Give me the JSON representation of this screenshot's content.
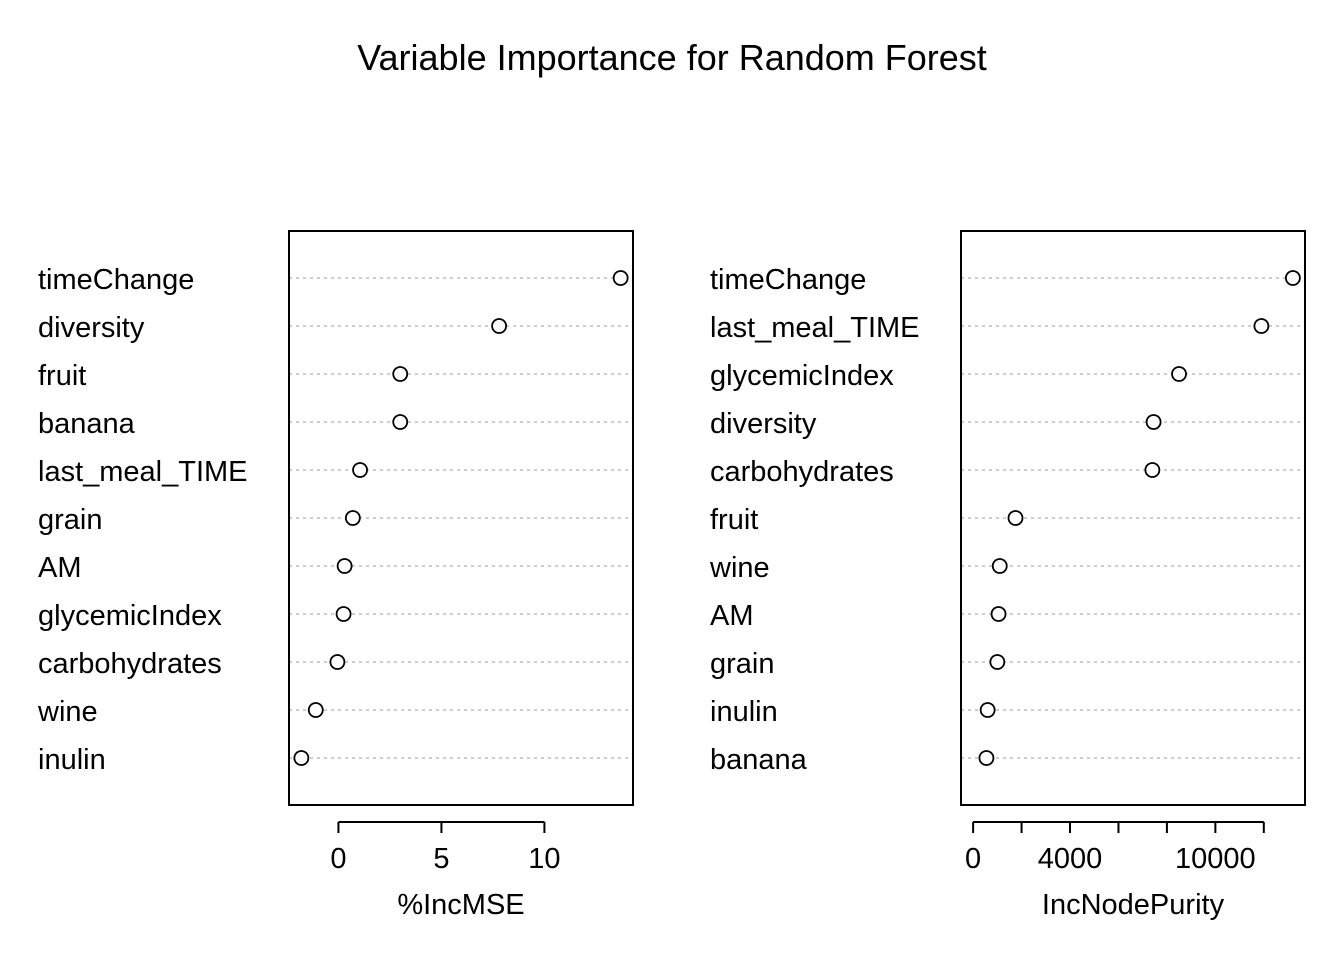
{
  "title": "Variable Importance for Random Forest",
  "chart_data": [
    {
      "type": "scatter",
      "subtype": "dotchart",
      "title": "",
      "xlabel": "%IncMSE",
      "ylabel": "",
      "xlim": [
        -2.4,
        14.3
      ],
      "xticks": [
        0,
        5,
        10
      ],
      "xtick_labels": [
        "0",
        "5",
        "10"
      ],
      "grid": "dotted horizontal lines per variable",
      "legend": "none",
      "categories": [
        "timeChange",
        "diversity",
        "fruit",
        "banana",
        "last_meal_TIME",
        "grain",
        "AM",
        "glycemicIndex",
        "carbohydrates",
        "wine",
        "inulin"
      ],
      "values": [
        13.7,
        7.8,
        3.0,
        3.0,
        1.05,
        0.7,
        0.3,
        0.25,
        -0.05,
        -1.1,
        -1.8
      ]
    },
    {
      "type": "scatter",
      "subtype": "dotchart",
      "title": "",
      "xlabel": "IncNodePurity",
      "ylabel": "",
      "xlim": [
        -500,
        13700
      ],
      "xticks": [
        0,
        2000,
        4000,
        6000,
        8000,
        10000,
        12000
      ],
      "xtick_labels": [
        "0",
        "",
        "4000",
        "",
        "",
        "10000",
        ""
      ],
      "grid": "dotted horizontal lines per variable",
      "legend": "none",
      "categories": [
        "timeChange",
        "last_meal_TIME",
        "glycemicIndex",
        "diversity",
        "carbohydrates",
        "fruit",
        "wine",
        "AM",
        "grain",
        "inulin",
        "banana"
      ],
      "values": [
        13200,
        11900,
        8500,
        7450,
        7400,
        1750,
        1100,
        1050,
        1000,
        600,
        550
      ]
    }
  ]
}
